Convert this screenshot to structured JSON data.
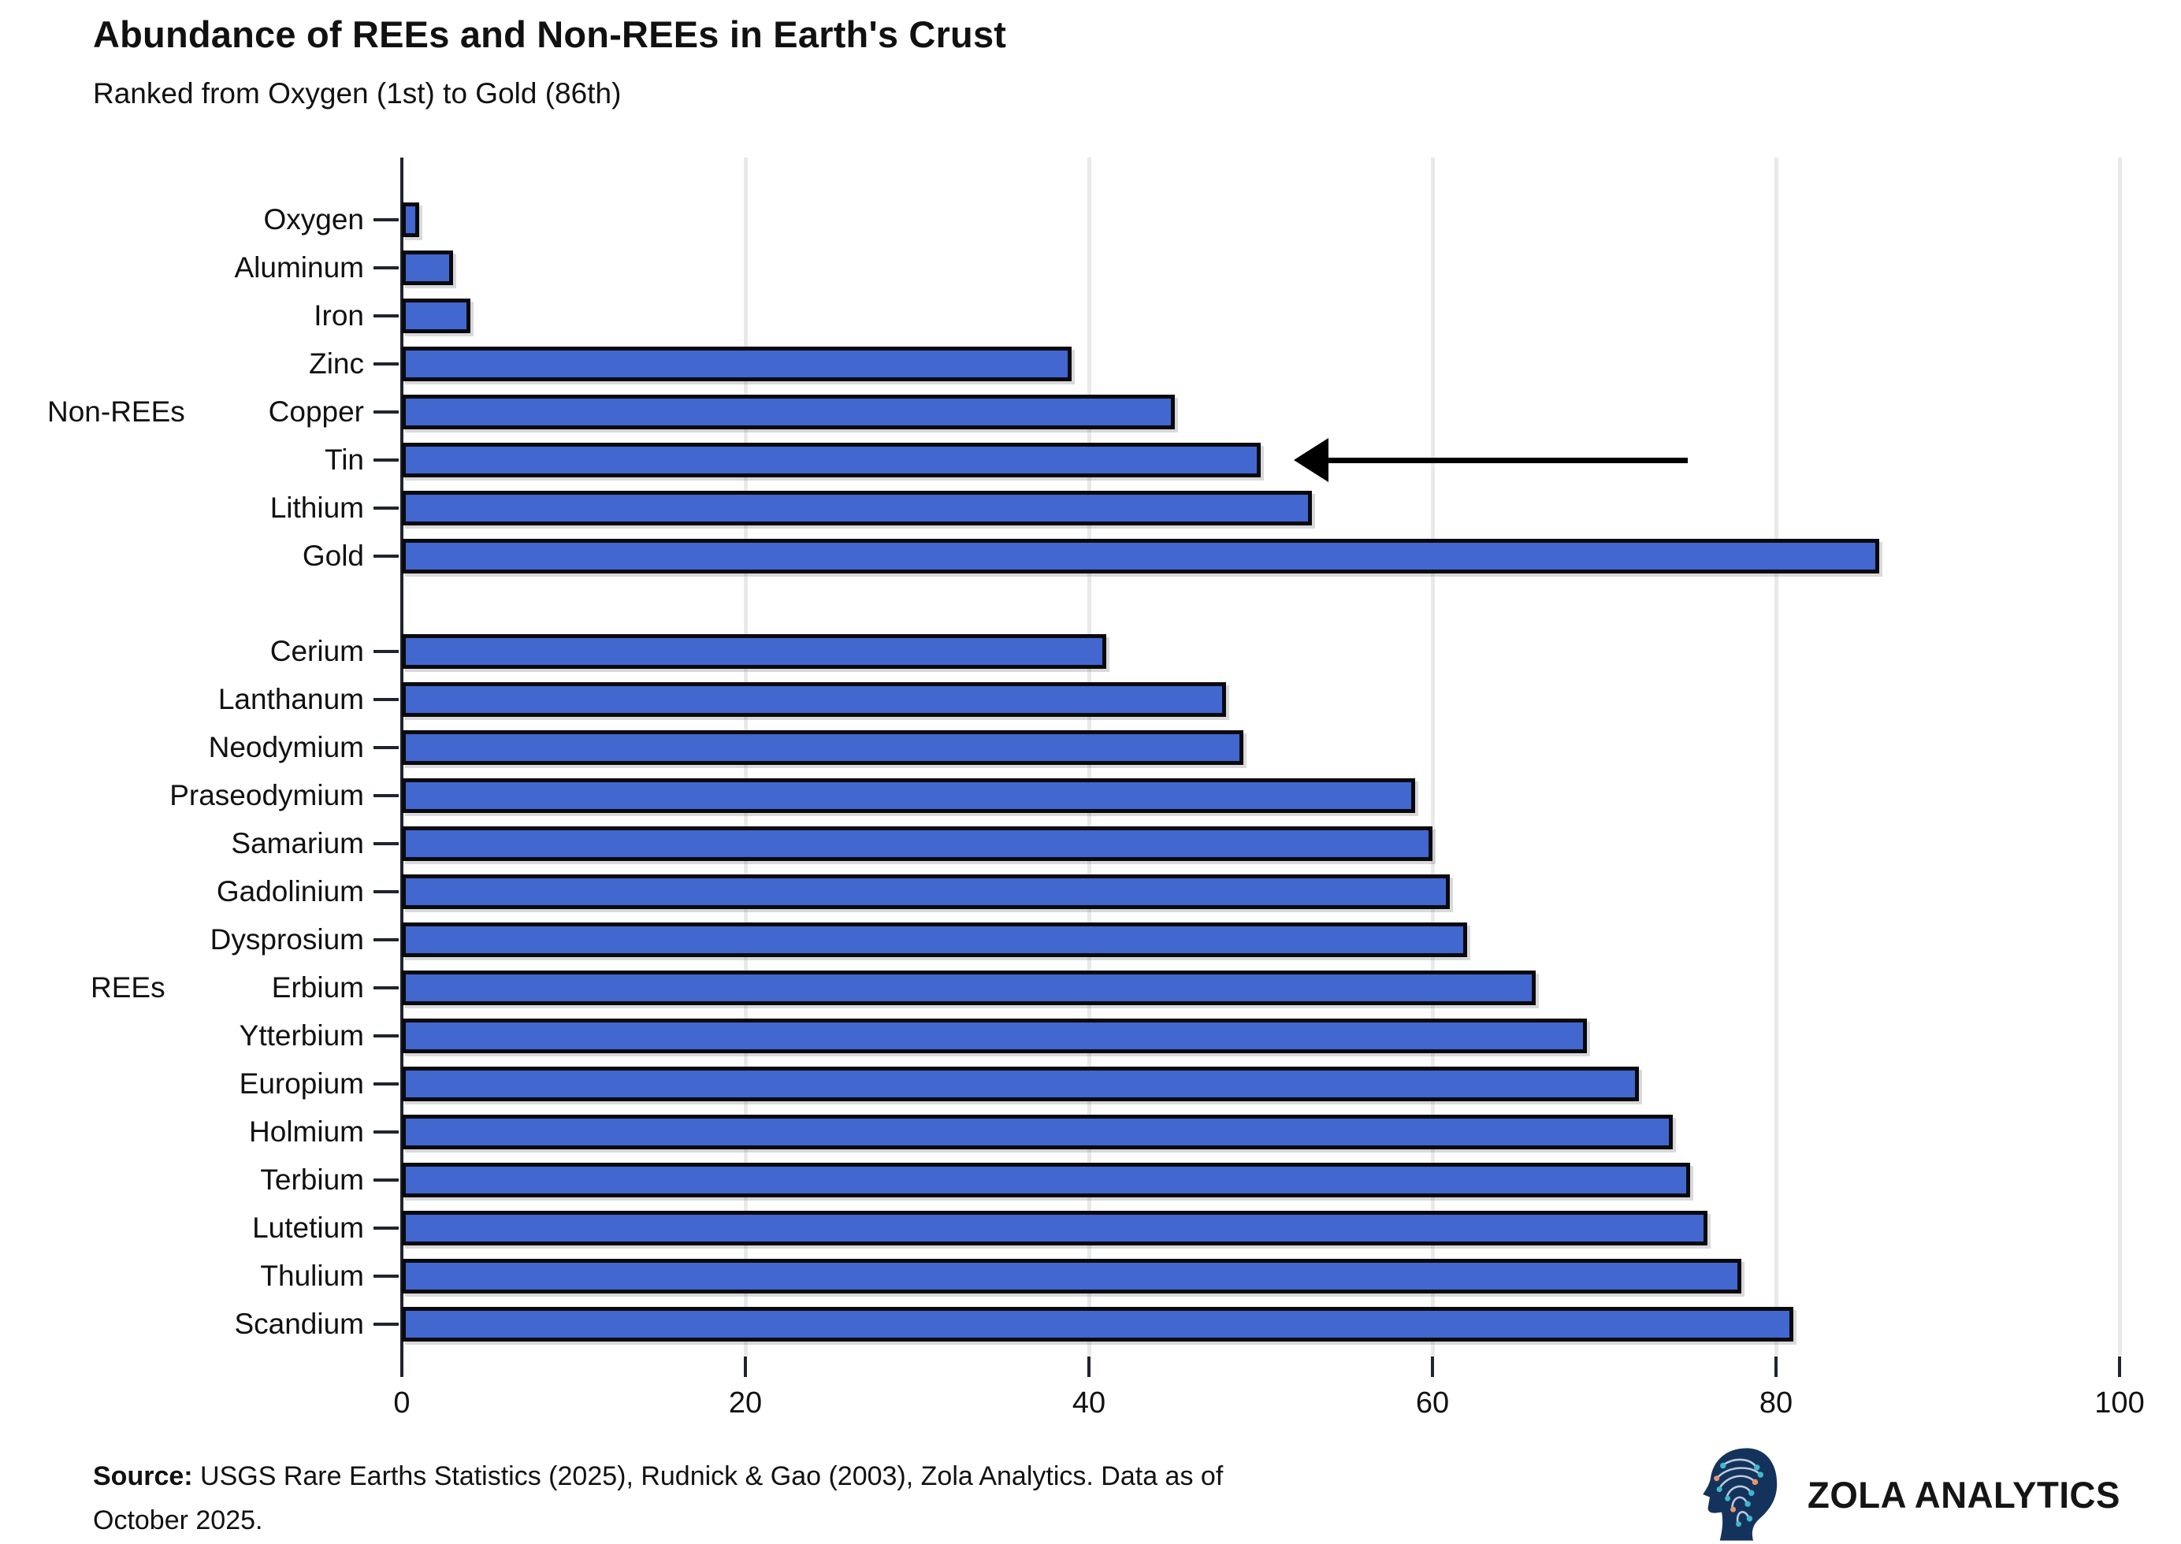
{
  "title": "Abundance of REEs and Non-REEs in Earth's Crust",
  "subtitle": "Ranked from Oxygen (1st) to Gold (86th)",
  "source": {
    "prefix": "Source:",
    "line1_rest": " USGS Rare Earths Statistics (2025), Rudnick & Gao (2003), Zola Analytics. Data as of",
    "line2": "October 2025."
  },
  "logo": {
    "text": "ZOLA ANALYTICS",
    "icon": "circuit-head-icon"
  },
  "colors": {
    "bar_fill": "#4267cf",
    "bar_edge": "#0a0a0e",
    "axis": "#1f2430",
    "gridline": "#e9e9e9",
    "arrow": "#000000",
    "logo_navy": "#14335c",
    "logo_teal": "#41b9cc",
    "logo_orange": "#e8956d"
  },
  "chart_data": {
    "type": "bar",
    "orientation": "horizontal",
    "title": "Abundance of REEs and Non-REEs in Earth's Crust",
    "subtitle": "Ranked from Oxygen (1st) to Gold (86th)",
    "xlabel": "",
    "ylabel": "",
    "xlim": [
      0,
      100
    ],
    "x_ticks": [
      0,
      20,
      40,
      60,
      80,
      100
    ],
    "grid": "vertical-major-only",
    "legend": "none",
    "groups": [
      {
        "label": "Non-REEs",
        "categories": [
          "Oxygen",
          "Aluminum",
          "Iron",
          "Zinc",
          "Copper",
          "Tin",
          "Lithium",
          "Gold"
        ],
        "values": [
          1,
          3,
          4,
          39,
          45,
          50,
          53,
          86
        ]
      },
      {
        "label": "REEs",
        "categories": [
          "Cerium",
          "Lanthanum",
          "Neodymium",
          "Praseodymium",
          "Samarium",
          "Gadolinium",
          "Dysprosium",
          "Erbium",
          "Ytterbium",
          "Europium",
          "Holmium",
          "Terbium",
          "Lutetium",
          "Thulium",
          "Scandium"
        ],
        "values": [
          41,
          48,
          49,
          59,
          60,
          61,
          62,
          66,
          69,
          72,
          74,
          75,
          76,
          78,
          81
        ]
      }
    ],
    "annotation": {
      "type": "arrow",
      "points_to": "Tin",
      "direction": "left"
    }
  }
}
